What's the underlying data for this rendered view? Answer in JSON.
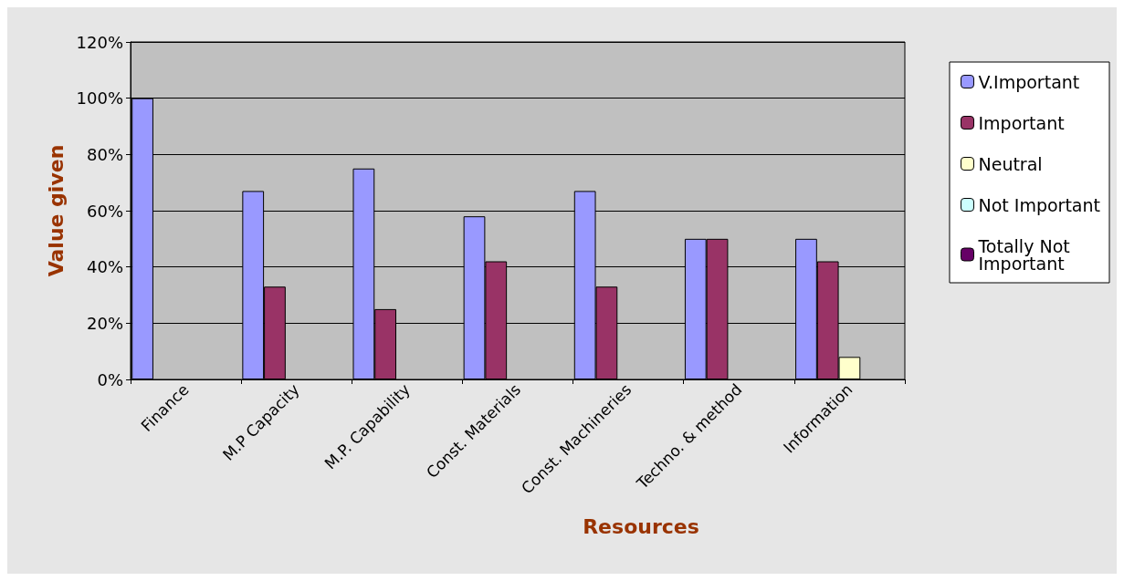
{
  "chart_data": {
    "type": "bar",
    "xlabel": "Resources",
    "ylabel": "Value given",
    "categories": [
      "Finance",
      "M.P Capacity",
      "M.P. Capability",
      "Const. Materials",
      "Const. Machineries",
      "Techno. & method",
      "Information"
    ],
    "series": [
      {
        "name": "V.Important",
        "color": "#9999ff",
        "values": [
          100,
          67,
          75,
          58,
          67,
          50,
          50
        ]
      },
      {
        "name": "Important",
        "color": "#993366",
        "values": [
          null,
          33,
          25,
          42,
          33,
          50,
          42
        ]
      },
      {
        "name": "Neutral",
        "color": "#ffffcc",
        "values": [
          null,
          null,
          null,
          null,
          null,
          null,
          8
        ]
      },
      {
        "name": "Not Important",
        "color": "#ccffff",
        "values": [
          null,
          null,
          null,
          null,
          null,
          null,
          null
        ]
      },
      {
        "name": "Totally Not Important",
        "color": "#660066",
        "values": [
          null,
          null,
          null,
          null,
          null,
          null,
          null
        ]
      }
    ],
    "ylim": [
      0,
      120
    ],
    "yticks": [
      {
        "value": 0,
        "label": "0%"
      },
      {
        "value": 20,
        "label": "20%"
      },
      {
        "value": 40,
        "label": "40%"
      },
      {
        "value": 60,
        "label": "60%"
      },
      {
        "value": 80,
        "label": "80%"
      },
      {
        "value": 100,
        "label": "100%"
      },
      {
        "value": 120,
        "label": "120%"
      }
    ],
    "grid": "y",
    "legend": "right"
  }
}
